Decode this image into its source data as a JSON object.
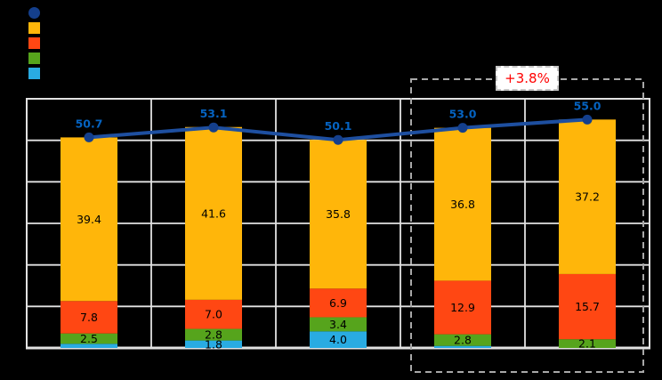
{
  "background_color": "#000000",
  "grid_color": "#e2e2e2",
  "legend": {
    "position": "top-left",
    "items": [
      {
        "name": "total-line",
        "shape": "circle",
        "color": "#143f8c"
      },
      {
        "name": "segment-orange",
        "shape": "square",
        "color": "#ffb60a"
      },
      {
        "name": "segment-red",
        "shape": "square",
        "color": "#ff4713"
      },
      {
        "name": "segment-green",
        "shape": "square",
        "color": "#56a41c"
      },
      {
        "name": "segment-lightblue",
        "shape": "square",
        "color": "#29abe2"
      }
    ]
  },
  "annotation": {
    "label": "+3.8%",
    "text_color": "#ff0000",
    "box_color": "#ffffff",
    "border_color": "#c6c6c6"
  },
  "chart_data": {
    "type": "bar",
    "subtype": "stacked-bars-with-total-line",
    "groups": 5,
    "title": "",
    "xlabel": "",
    "ylabel": "",
    "ylim": [
      0,
      60
    ],
    "grid_step": 10,
    "grid": true,
    "legend_position": "top-left",
    "series": [
      {
        "name": "lightblue",
        "color": "#29abe2",
        "values": [
          1.0,
          1.8,
          4.0,
          0.5,
          0.0
        ],
        "labels": [
          "",
          "1.8",
          "4.0",
          "",
          ""
        ]
      },
      {
        "name": "green",
        "color": "#56a41c",
        "values": [
          2.5,
          2.8,
          3.4,
          2.8,
          2.1
        ],
        "labels": [
          "2.5",
          "2.8",
          "3.4",
          "2.8",
          "2.1"
        ]
      },
      {
        "name": "red",
        "color": "#ff4713",
        "values": [
          7.8,
          7.0,
          6.9,
          12.9,
          15.7
        ],
        "labels": [
          "7.8",
          "7.0",
          "6.9",
          "12.9",
          "15.7"
        ]
      },
      {
        "name": "orange",
        "color": "#ffb60a",
        "values": [
          39.4,
          41.6,
          35.8,
          36.8,
          37.2
        ],
        "labels": [
          "39.4",
          "41.6",
          "35.8",
          "36.8",
          "37.2"
        ]
      }
    ],
    "line": {
      "name": "total",
      "color": "#1e4fa0",
      "marker_color": "#143f8c",
      "label_color": "#0563c1",
      "values": [
        50.7,
        53.1,
        50.1,
        53.0,
        55.0
      ],
      "labels": [
        "50.7",
        "53.1",
        "50.1",
        "53.0",
        "55.0"
      ]
    },
    "highlight": {
      "start_group_index": 3,
      "end_group_index": 4,
      "label": "+3.8%",
      "border_color": "#a8a8a8"
    },
    "segment_label_color": "#000000"
  }
}
